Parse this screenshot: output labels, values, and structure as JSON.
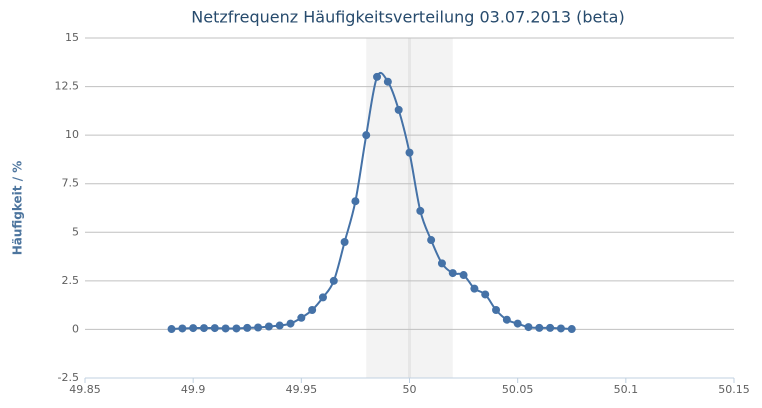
{
  "chart_data": {
    "type": "line",
    "title": "Netzfrequenz Häufigkeitsverteilung 03.07.2013 (beta)",
    "y_label": "Häufigkeit / %",
    "x": [
      49.89,
      49.895,
      49.9,
      49.905,
      49.91,
      49.915,
      49.92,
      49.925,
      49.93,
      49.935,
      49.94,
      49.945,
      49.95,
      49.955,
      49.96,
      49.965,
      49.97,
      49.975,
      49.98,
      49.985,
      49.99,
      49.995,
      50.0,
      50.005,
      50.01,
      50.015,
      50.02,
      50.025,
      50.03,
      50.035,
      50.04,
      50.045,
      50.05,
      50.055,
      50.06,
      50.065,
      50.07,
      50.075
    ],
    "values": [
      0.02,
      0.05,
      0.07,
      0.07,
      0.07,
      0.05,
      0.05,
      0.08,
      0.1,
      0.15,
      0.2,
      0.3,
      0.6,
      1.0,
      1.65,
      2.5,
      4.5,
      6.6,
      10.0,
      13.0,
      12.75,
      11.3,
      9.1,
      6.1,
      4.6,
      3.4,
      2.9,
      2.8,
      2.1,
      1.8,
      1.0,
      0.5,
      0.3,
      0.12,
      0.08,
      0.08,
      0.05,
      0.02
    ],
    "color": "#4572a7",
    "xlim": [
      49.85,
      50.15
    ],
    "xticks": [
      49.85,
      49.9,
      49.95,
      50,
      50.05,
      50.1,
      50.15
    ],
    "ylim": [
      -2.5,
      15
    ],
    "yticks": [
      -2.5,
      0,
      2.5,
      5,
      7.5,
      10,
      12.5,
      15
    ],
    "grid": true,
    "plot_band": [
      49.98,
      50.02
    ],
    "plot_line": 50
  }
}
